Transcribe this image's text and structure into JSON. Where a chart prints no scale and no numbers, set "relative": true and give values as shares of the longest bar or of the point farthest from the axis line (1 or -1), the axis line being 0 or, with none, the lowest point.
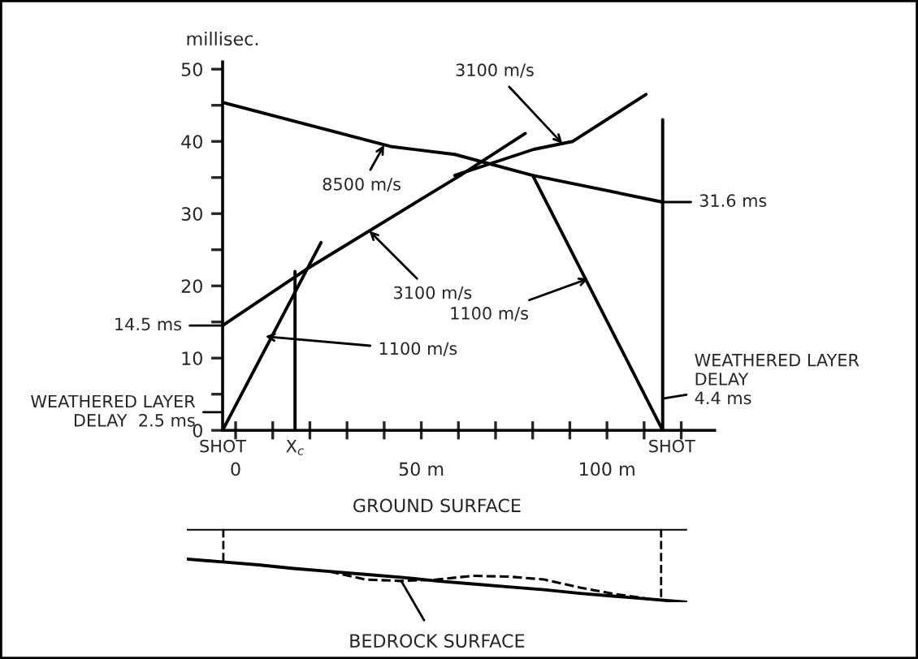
{
  "chart_data": [
    {
      "type": "line",
      "ylabel": "millisec.",
      "series": [
        {
          "color": "#000000",
          "x": [
            -3.5,
            23
          ],
          "values": [
            0,
            26
          ]
        },
        {
          "color": "#000000",
          "x": [
            -3.5,
            19.7,
            60.5,
            78
          ],
          "values": [
            14.5,
            22.5,
            35.3,
            41.1
          ]
        },
        {
          "color": "#000000",
          "x": [
            -3.5,
            41.7,
            59,
            80,
            115
          ],
          "values": [
            45.4,
            39.3,
            38.2,
            35.3,
            31.6
          ]
        },
        {
          "color": "#000000",
          "x": [
            59,
            80.3,
            90.8,
            110.5
          ],
          "values": [
            35.3,
            38.9,
            40,
            46.5
          ]
        },
        {
          "color": "#000000",
          "x": [
            80,
            115
          ],
          "values": [
            35.3,
            0
          ]
        },
        {
          "color": "#000000",
          "x": [
            16,
            16
          ],
          "values": [
            0,
            22
          ]
        },
        {
          "color": "#000000",
          "x": [
            115,
            115
          ],
          "values": [
            0,
            43
          ]
        }
      ],
      "xlim": [
        -3.5,
        129
      ],
      "ylim": [
        0,
        51
      ],
      "xticks": [
        0,
        {
          "value": 10,
          "label": null
        },
        {
          "value": 20,
          "label": null
        },
        {
          "value": 30,
          "label": null
        },
        {
          "value": 40,
          "label": null
        },
        {
          "value": 50,
          "label": "50 m"
        },
        {
          "value": 60,
          "label": null
        },
        {
          "value": 70,
          "label": null
        },
        {
          "value": 80,
          "label": null
        },
        {
          "value": 90,
          "label": null
        },
        {
          "value": 100,
          "label": "100 m"
        },
        {
          "value": 110,
          "label": null
        },
        {
          "value": 120,
          "label": null
        }
      ],
      "yticks": [
        0,
        {
          "value": 5,
          "label": null
        },
        10,
        {
          "value": 15,
          "label": null
        },
        20,
        {
          "value": 25,
          "label": null
        },
        30,
        {
          "value": 35,
          "label": null
        },
        40,
        {
          "value": 45,
          "label": null
        },
        50
      ],
      "annotations": [
        {
          "text": "8500 m/s",
          "x": 40,
          "y": 39.5
        },
        {
          "text": "3100 m/s",
          "x": 36,
          "y": 27.6
        },
        {
          "text": "1100 m/s",
          "x": 8,
          "y": 13
        },
        {
          "text": "3100 m/s",
          "x": 88,
          "y": 39.7
        },
        {
          "text": "1100 m/s",
          "x": 95,
          "y": 21
        },
        {
          "text": "14.5 ms",
          "x": -3.5,
          "y": 14.5
        },
        {
          "text": "31.6 ms",
          "x": 115,
          "y": 31.6
        },
        {
          "text": "WEATHERED LAYER\nDELAY  2.5 ms",
          "x": -3.5,
          "y": 2.5
        },
        {
          "text": "WEATHERED LAYER\nDELAY\n4.4 ms",
          "x": 115,
          "y": 4.4
        },
        {
          "text": "SHOT",
          "x": -3.5,
          "y": 0
        },
        {
          "text": "SHOT",
          "x": 115,
          "y": 0
        },
        {
          "text": "X$_{c}$",
          "x": 16,
          "y": 0
        }
      ],
      "grid": false,
      "legend": false
    },
    {
      "type": "line",
      "relative": true,
      "categories": [
        null,
        null,
        null,
        null,
        null,
        null,
        null,
        null,
        null,
        null,
        null,
        null,
        null,
        null,
        null
      ],
      "series": [
        {
          "color": "#000000",
          "values": [
            1,
            1,
            1,
            1,
            1,
            1,
            1,
            1,
            1,
            1,
            1,
            1,
            1,
            1,
            1
          ]
        },
        {
          "color": "#000000",
          "values": [
            0.59,
            0.55,
            0.51,
            0.46,
            0.42,
            0.38,
            0.34,
            0.29,
            0.25,
            0.21,
            0.17,
            0.12,
            0.08,
            0.04,
            0
          ]
        },
        {
          "color": "#000000",
          "line_style": "dashed",
          "values": [
            null,
            null,
            null,
            null,
            0.42,
            0.31,
            0.29,
            0.31,
            0.36,
            0.35,
            0.31,
            0.2,
            0.11,
            0.04,
            null
          ]
        }
      ],
      "annotations": [
        "GROUND SURFACE",
        "BEDROCK SURFACE"
      ]
    }
  ]
}
